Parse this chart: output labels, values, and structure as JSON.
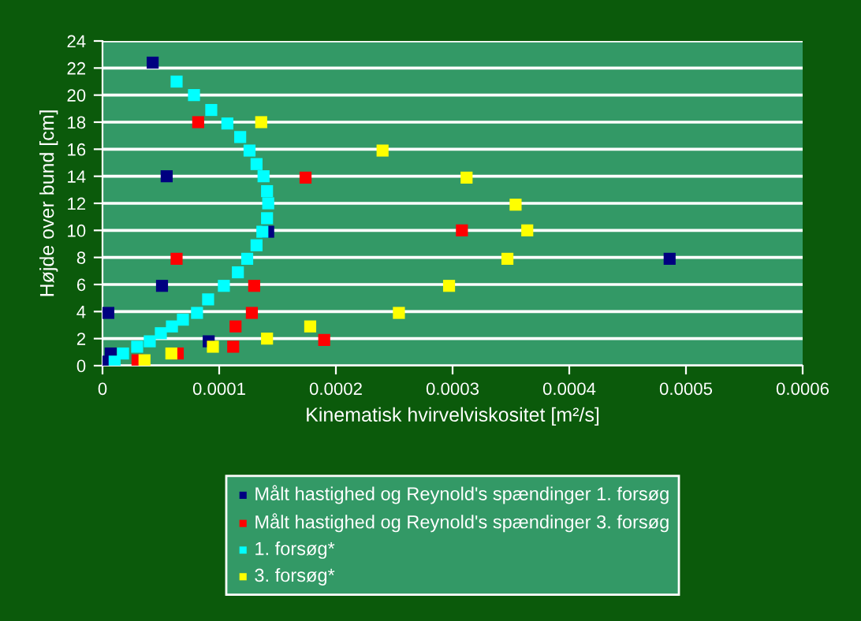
{
  "chart_data": {
    "type": "scatter",
    "xlabel": "Kinematisk hvirvelviskositet [m²/s]",
    "ylabel": "Højde over bund [cm]",
    "xlim": [
      0,
      0.0006
    ],
    "xticks": [
      0,
      0.0001,
      0.0002,
      0.0003,
      0.0004,
      0.0005,
      0.0006
    ],
    "ylim": [
      0,
      24
    ],
    "yticks": [
      0,
      2,
      4,
      6,
      8,
      10,
      12,
      14,
      16,
      18,
      20,
      22,
      24
    ],
    "grid": "y",
    "legend": "bottom",
    "marker": "square",
    "series": [
      {
        "name": "Målt hastighed og Reynold's spændinger 1. forsøg",
        "color": "#000080",
        "x": [
          4.3e-05,
          5.5e-05,
          0.000142,
          0.000486,
          5.1e-05,
          5e-06,
          9.1e-05,
          7e-06,
          4e-06
        ],
        "values": [
          22.4,
          14,
          9.9,
          7.9,
          5.9,
          3.9,
          1.8,
          0.9,
          0.3
        ]
      },
      {
        "name": "Målt hastighed og Reynold's spændinger 3. forsøg",
        "color": "#ff0000",
        "x": [
          8.2e-05,
          0.000174,
          0.000308,
          6.35e-05,
          0.00013,
          0.000128,
          0.000114,
          0.00019,
          0.000112,
          6.45e-05,
          3e-05
        ],
        "values": [
          18,
          13.9,
          10,
          7.9,
          5.9,
          3.9,
          2.9,
          1.9,
          1.4,
          0.9,
          0.4
        ]
      },
      {
        "name": "1. forsøg*",
        "color": "#00ffff",
        "x": [
          6.35e-05,
          7.84e-05,
          9.32e-05,
          0.000107,
          0.000118,
          0.000126,
          0.000132,
          0.000138,
          0.000141,
          0.000142,
          0.000141,
          0.000137,
          0.000132,
          0.000124,
          0.000116,
          0.000104,
          9.05e-05,
          8.1e-05,
          6.89e-05,
          5.95e-05,
          5e-05,
          4.05e-05,
          2.97e-05,
          1.76e-05,
          1.04e-05
        ],
        "values": [
          21,
          20,
          18.9,
          17.9,
          16.9,
          15.9,
          14.9,
          14,
          12.9,
          12,
          10.9,
          9.9,
          8.9,
          7.9,
          6.9,
          5.9,
          4.9,
          3.9,
          3.4,
          2.9,
          2.4,
          1.8,
          1.4,
          0.9,
          0.3
        ]
      },
      {
        "name": "3. forsøg*",
        "color": "#ffff00",
        "x": [
          0.000136,
          0.00024,
          0.000312,
          0.000354,
          0.000364,
          0.000347,
          0.000297,
          0.000254,
          0.000178,
          0.000141,
          9.46e-05,
          5.9e-05,
          3.6e-05
        ],
        "values": [
          18,
          15.9,
          13.9,
          11.9,
          10,
          7.9,
          5.9,
          3.9,
          2.9,
          2,
          1.4,
          0.9,
          0.4
        ]
      }
    ]
  }
}
